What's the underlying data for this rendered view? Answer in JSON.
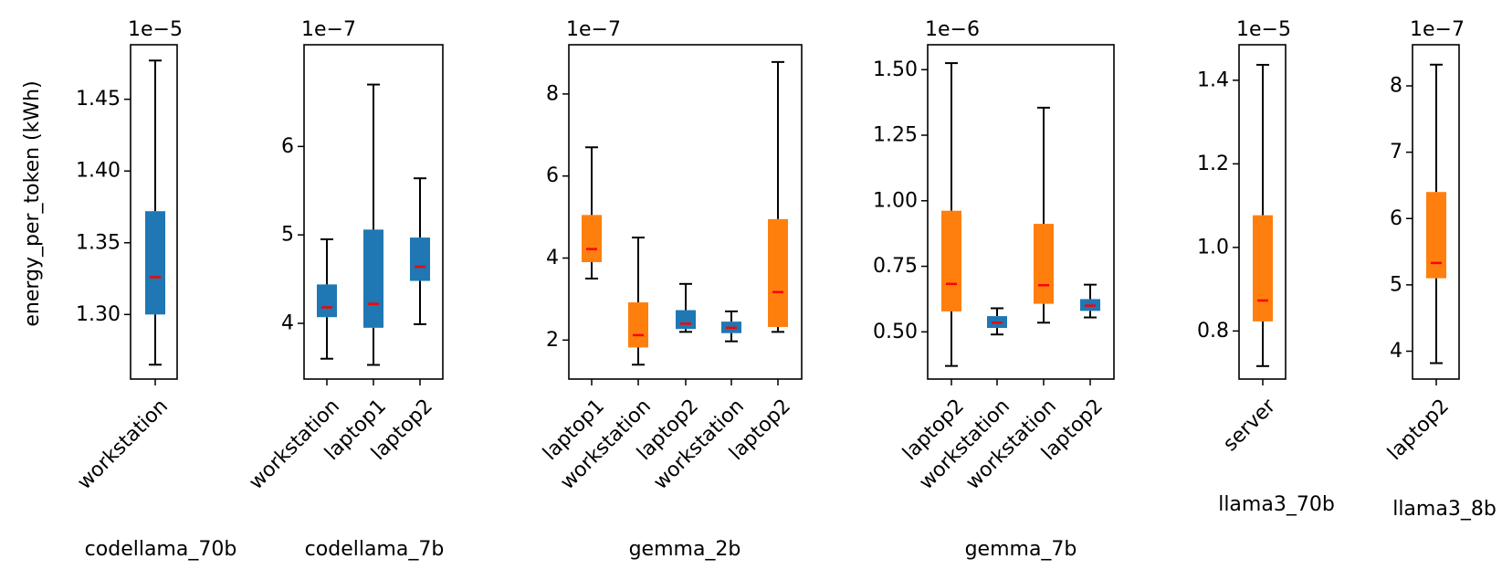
{
  "figure": {
    "ylabel": "energy_per_token (kWh)"
  },
  "colors": {
    "blue": "#1f77b4",
    "orange": "#ff7f0e",
    "median": "#ff0000",
    "whisker": "#000000"
  },
  "chart_data": [
    {
      "type": "box",
      "xlabel": "codellama_70b",
      "multiplier": "1e−5",
      "ylim": [
        1.255,
        1.488
      ],
      "yticks": [
        1.3,
        1.35,
        1.4,
        1.45
      ],
      "ytick_labels": [
        "1.30",
        "1.35",
        "1.40",
        "1.45"
      ],
      "boxes": [
        {
          "label": "workstation",
          "color": "blue",
          "whislo": 1.265,
          "q1": 1.3,
          "med": 1.326,
          "q3": 1.372,
          "whishi": 1.477
        }
      ]
    },
    {
      "type": "box",
      "xlabel": "codellama_7b",
      "multiplier": "1e−7",
      "ylim": [
        3.37,
        7.15
      ],
      "yticks": [
        4,
        5,
        6
      ],
      "ytick_labels": [
        "4",
        "5",
        "6"
      ],
      "boxes": [
        {
          "label": "workstation",
          "color": "blue",
          "whislo": 3.6,
          "q1": 4.07,
          "med": 4.18,
          "q3": 4.44,
          "whishi": 4.95
        },
        {
          "label": "laptop1",
          "color": "blue",
          "whislo": 3.53,
          "q1": 3.95,
          "med": 4.22,
          "q3": 5.06,
          "whishi": 6.7
        },
        {
          "label": "laptop2",
          "color": "blue",
          "whislo": 3.99,
          "q1": 4.48,
          "med": 4.64,
          "q3": 4.97,
          "whishi": 5.64
        }
      ]
    },
    {
      "type": "box",
      "xlabel": "gemma_2b",
      "multiplier": "1e−7",
      "ylim": [
        1.05,
        9.2
      ],
      "yticks": [
        2,
        4,
        6,
        8
      ],
      "ytick_labels": [
        "2",
        "4",
        "6",
        "8"
      ],
      "boxes": [
        {
          "label": "laptop1",
          "color": "orange",
          "whislo": 3.5,
          "q1": 3.9,
          "med": 4.22,
          "q3": 5.05,
          "whishi": 6.7
        },
        {
          "label": "workstation",
          "color": "orange",
          "whislo": 1.4,
          "q1": 1.82,
          "med": 2.12,
          "q3": 2.92,
          "whishi": 4.5
        },
        {
          "label": "laptop2",
          "color": "blue",
          "whislo": 2.2,
          "q1": 2.27,
          "med": 2.4,
          "q3": 2.73,
          "whishi": 3.37
        },
        {
          "label": "workstation",
          "color": "blue",
          "whislo": 1.97,
          "q1": 2.17,
          "med": 2.3,
          "q3": 2.45,
          "whishi": 2.7
        },
        {
          "label": "laptop2",
          "color": "orange",
          "whislo": 2.2,
          "q1": 2.32,
          "med": 3.17,
          "q3": 4.95,
          "whishi": 8.78
        }
      ]
    },
    {
      "type": "box",
      "xlabel": "gemma_7b",
      "multiplier": "1e−6",
      "ylim": [
        0.32,
        1.595
      ],
      "yticks": [
        0.5,
        0.75,
        1.0,
        1.25,
        1.5
      ],
      "ytick_labels": [
        "0.50",
        "0.75",
        "1.00",
        "1.25",
        "1.50"
      ],
      "boxes": [
        {
          "label": "laptop2",
          "color": "orange",
          "whislo": 0.37,
          "q1": 0.578,
          "med": 0.683,
          "q3": 0.962,
          "whishi": 1.525
        },
        {
          "label": "workstation",
          "color": "blue",
          "whislo": 0.49,
          "q1": 0.515,
          "med": 0.535,
          "q3": 0.56,
          "whishi": 0.59
        },
        {
          "label": "workstation",
          "color": "orange",
          "whislo": 0.535,
          "q1": 0.607,
          "med": 0.678,
          "q3": 0.912,
          "whishi": 1.355
        },
        {
          "label": "laptop2",
          "color": "blue",
          "whislo": 0.555,
          "q1": 0.58,
          "med": 0.6,
          "q3": 0.625,
          "whishi": 0.68
        }
      ]
    },
    {
      "type": "box",
      "xlabel": "llama3_70b",
      "multiplier": "1e−5",
      "ylim": [
        0.685,
        1.485
      ],
      "yticks": [
        0.8,
        1.0,
        1.2,
        1.4
      ],
      "ytick_labels": [
        "0.8",
        "1.0",
        "1.2",
        "1.4"
      ],
      "boxes": [
        {
          "label": "server",
          "color": "orange",
          "whislo": 0.716,
          "q1": 0.823,
          "med": 0.873,
          "q3": 1.077,
          "whishi": 1.437
        }
      ]
    },
    {
      "type": "box",
      "xlabel": "llama3_8b",
      "multiplier": "1e−7",
      "ylim": [
        3.58,
        8.62
      ],
      "yticks": [
        4,
        5,
        6,
        7,
        8
      ],
      "ytick_labels": [
        "4",
        "5",
        "6",
        "7",
        "8"
      ],
      "boxes": [
        {
          "label": "laptop2",
          "color": "orange",
          "whislo": 3.82,
          "q1": 5.1,
          "med": 5.33,
          "q3": 6.4,
          "whishi": 8.32
        }
      ]
    }
  ]
}
